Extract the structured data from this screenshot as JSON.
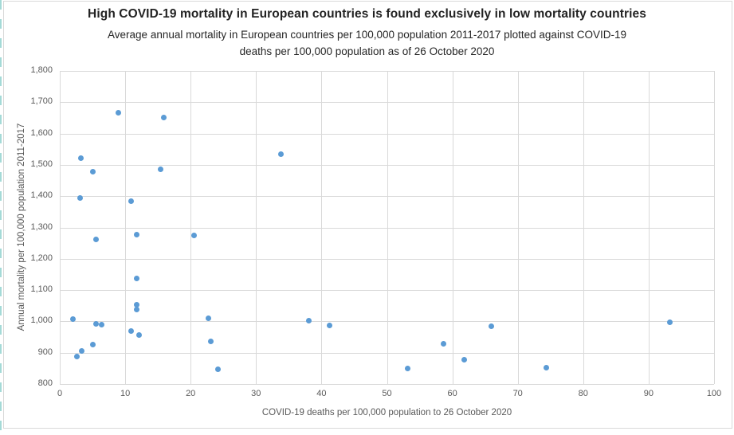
{
  "chart_data": {
    "type": "scatter",
    "title": "High COVID-19 mortality in European countries is found exclusively in low mortality countries",
    "subtitle_line1": "Average annual mortality in European countries per 100,000 population 2011-2017 plotted against COVID-19",
    "subtitle_line2": "deaths per 100,000 population as of 26 October 2020",
    "xlabel": "COVID-19 deaths per 100,000 population to 26 October 2020",
    "ylabel": "Annual mortality per 100,000 population 2011-2017",
    "xlim": [
      0,
      100
    ],
    "ylim": [
      800,
      1800
    ],
    "xtick_step": 10,
    "ytick_step": 100,
    "xticks": [
      "0",
      "10",
      "20",
      "30",
      "40",
      "50",
      "60",
      "70",
      "80",
      "90",
      "100"
    ],
    "yticks": [
      "800",
      "900",
      "1,000",
      "1,100",
      "1,200",
      "1,300",
      "1,400",
      "1,500",
      "1,600",
      "1,700",
      "1,800"
    ],
    "grid": true,
    "legend": "none",
    "point_color": "#5B9BD5",
    "gridline_color": "#d9d9d9",
    "text_color": "#595959",
    "points": [
      [
        2.0,
        1008
      ],
      [
        2.6,
        888
      ],
      [
        3.1,
        1394
      ],
      [
        3.2,
        1522
      ],
      [
        3.3,
        906
      ],
      [
        5.0,
        1477
      ],
      [
        5.1,
        927
      ],
      [
        5.5,
        1262
      ],
      [
        5.6,
        991
      ],
      [
        6.4,
        989
      ],
      [
        9.0,
        1666
      ],
      [
        10.9,
        1384
      ],
      [
        10.9,
        970
      ],
      [
        11.7,
        1138
      ],
      [
        11.8,
        1277
      ],
      [
        11.8,
        1052
      ],
      [
        11.8,
        1038
      ],
      [
        12.1,
        957
      ],
      [
        15.4,
        1486
      ],
      [
        15.9,
        1650
      ],
      [
        20.5,
        1274
      ],
      [
        22.7,
        1009
      ],
      [
        23.1,
        937
      ],
      [
        24.2,
        846
      ],
      [
        33.8,
        1533
      ],
      [
        38.1,
        1002
      ],
      [
        41.2,
        986
      ],
      [
        53.2,
        850
      ],
      [
        58.7,
        929
      ],
      [
        61.8,
        877
      ],
      [
        66.0,
        984
      ],
      [
        74.4,
        852
      ],
      [
        93.3,
        998
      ]
    ]
  }
}
